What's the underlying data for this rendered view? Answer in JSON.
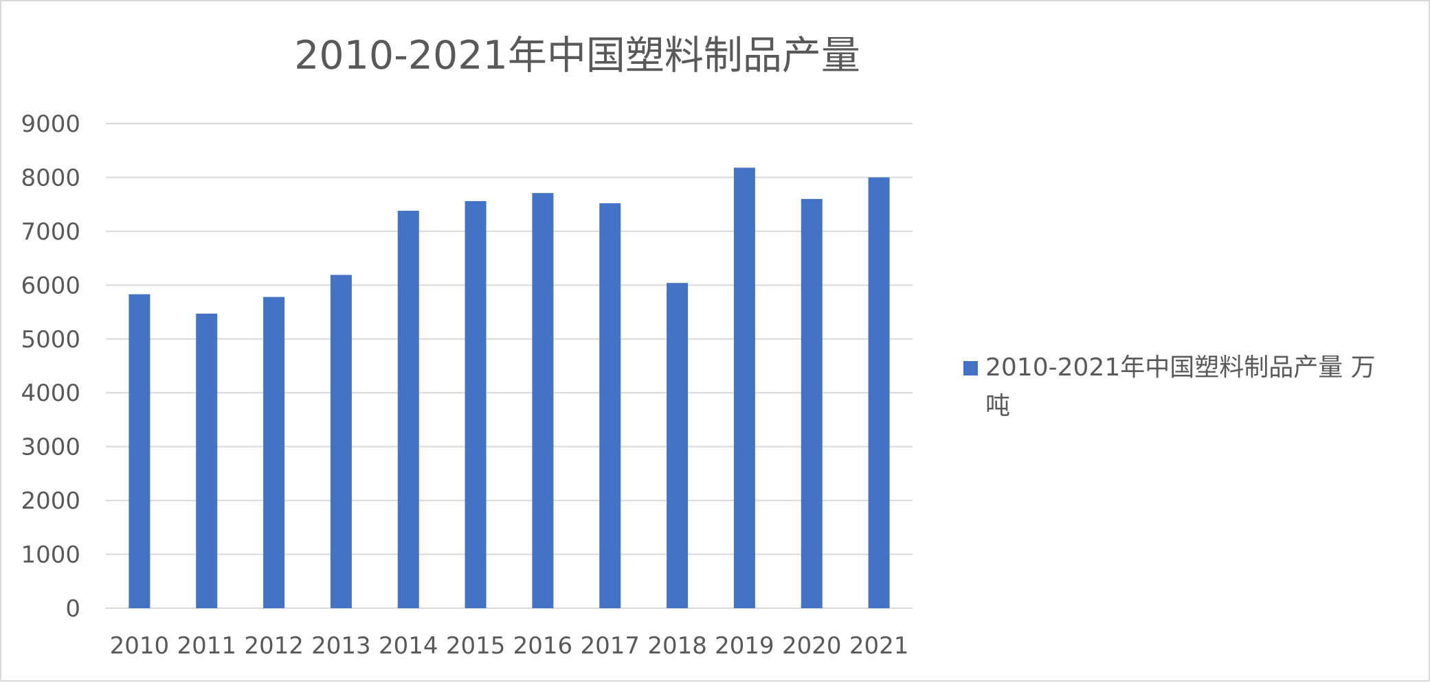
{
  "chart_data": {
    "type": "bar",
    "title": "2010-2021年中国塑料制品产量",
    "xlabel": "",
    "ylabel": "",
    "categories": [
      "2010",
      "2011",
      "2012",
      "2013",
      "2014",
      "2015",
      "2016",
      "2017",
      "2018",
      "2019",
      "2020",
      "2021"
    ],
    "series": [
      {
        "name": "2010-2021年中国塑料制品产量 万吨",
        "values": [
          5830,
          5470,
          5780,
          6190,
          7380,
          7560,
          7710,
          7520,
          6040,
          8180,
          7600,
          8000
        ]
      }
    ],
    "ylim": [
      0,
      9000
    ],
    "yticks": [
      "0",
      "1000",
      "2000",
      "3000",
      "4000",
      "5000",
      "6000",
      "7000",
      "8000",
      "9000"
    ],
    "grid": true,
    "legend_position": "right",
    "colors": {
      "bar": "#4472C4",
      "grid": "#d9d9d9",
      "text": "#595959",
      "title": "#595959"
    }
  }
}
